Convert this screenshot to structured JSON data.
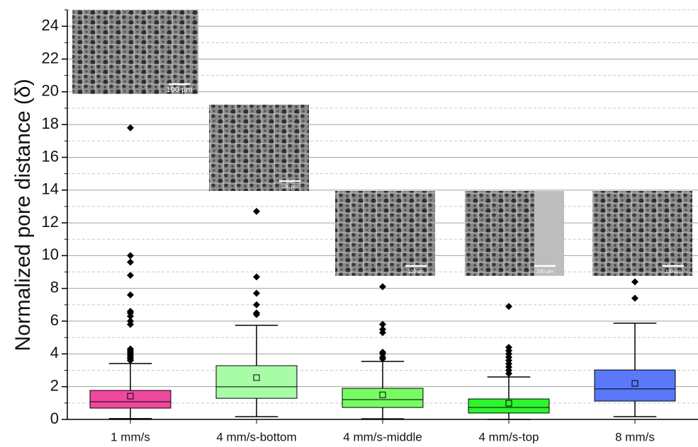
{
  "chart_data": {
    "type": "box",
    "ylabel": "Normalized pore distance (δ)",
    "categories": [
      "1 mm/s",
      "4 mm/s-bottom",
      "4 mm/s-middle",
      "4 mm/s-top",
      "8 mm/s"
    ],
    "colors": [
      "#f0489c",
      "#a8fca8",
      "#78fc64",
      "#2cf52c",
      "#5a78f8"
    ],
    "boxes": [
      {
        "whisker_low": 0.05,
        "q1": 0.69,
        "median": 1.08,
        "q3": 1.77,
        "whisker_high": 3.41,
        "mean": 1.42,
        "outliers": [
          3.6,
          3.7,
          3.8,
          3.9,
          4.0,
          4.1,
          4.2,
          4.3,
          5.8,
          6.0,
          6.3,
          6.5,
          6.6,
          7.6,
          8.8,
          9.6,
          10.0,
          17.8
        ]
      },
      {
        "whisker_low": 0.17,
        "q1": 1.29,
        "median": 1.99,
        "q3": 3.28,
        "whisker_high": 5.74,
        "mean": 2.55,
        "outliers": [
          6.4,
          6.5,
          7.0,
          7.7,
          8.7,
          12.7
        ]
      },
      {
        "whisker_low": 0.04,
        "q1": 0.73,
        "median": 1.21,
        "q3": 1.9,
        "whisker_high": 3.54,
        "mean": 1.5,
        "outliers": [
          3.7,
          3.8,
          4.0,
          4.1,
          5.3,
          5.5,
          5.8,
          8.1
        ]
      },
      {
        "whisker_low": 0,
        "q1": 0.39,
        "median": 0.73,
        "q3": 1.25,
        "whisker_high": 2.59,
        "mean": 0.99,
        "outliers": [
          2.8,
          3.0,
          3.2,
          3.4,
          3.6,
          3.8,
          4.0,
          4.2,
          4.4,
          6.9
        ]
      },
      {
        "whisker_low": 0.17,
        "q1": 1.12,
        "median": 1.86,
        "q3": 3.02,
        "whisker_high": 5.87,
        "mean": 2.2,
        "outliers": [
          7.4,
          8.4
        ]
      }
    ],
    "annotations": [
      "100 µm",
      "100 µm",
      "100 µm",
      "100 µm",
      "100 µm"
    ],
    "ylim": [
      0,
      25
    ],
    "yticks": [
      0,
      2,
      4,
      6,
      8,
      10,
      12,
      14,
      16,
      18,
      20,
      22,
      24
    ],
    "yminorticks": [
      1,
      3,
      5,
      7,
      9,
      11,
      13,
      15,
      17,
      19,
      21,
      23,
      25
    ],
    "grid": true
  }
}
